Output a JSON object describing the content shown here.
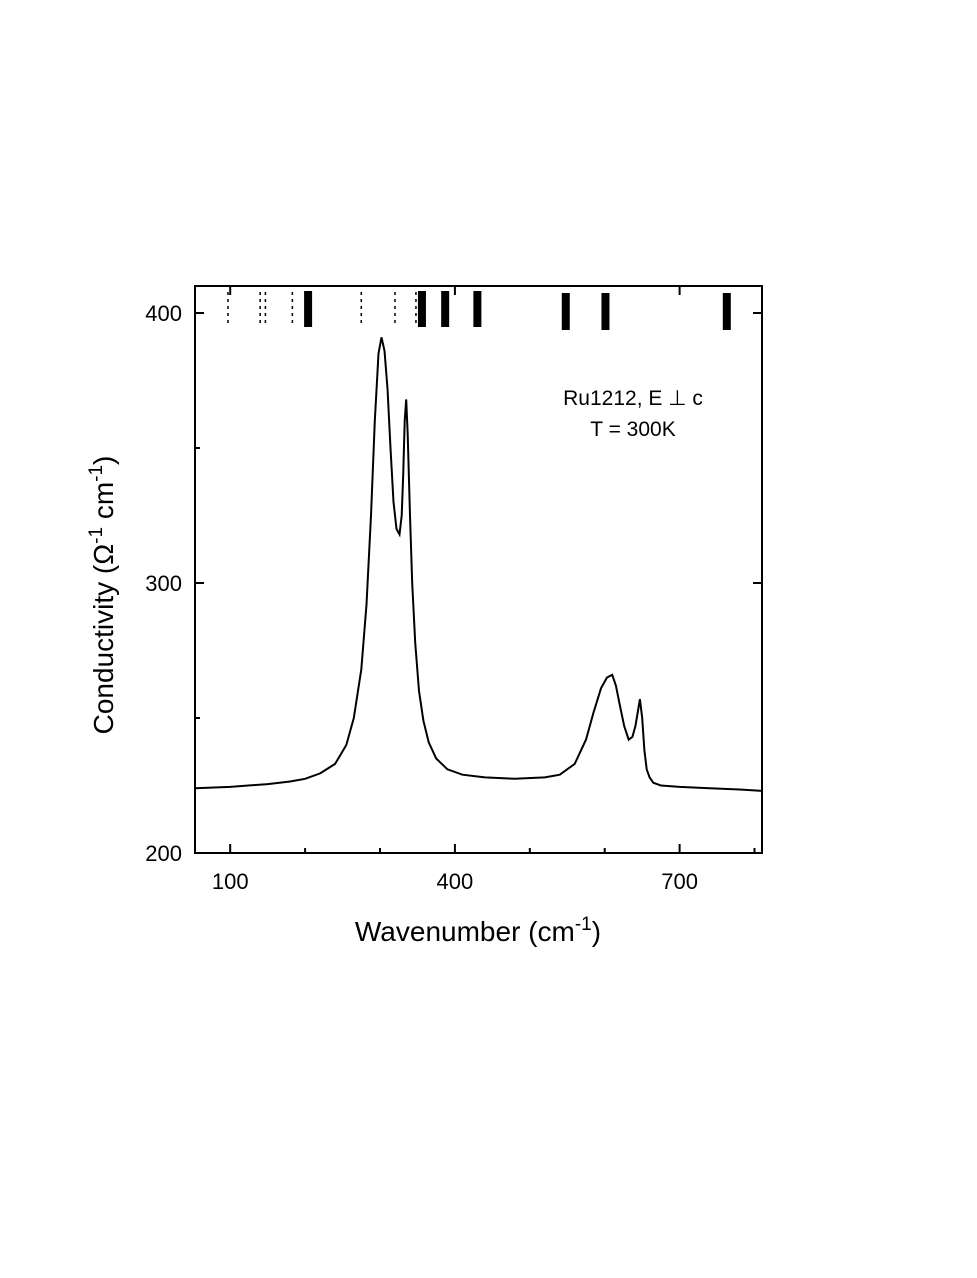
{
  "chart_data": {
    "type": "line",
    "title": "",
    "xlabel": {
      "base": "Wavenumber (cm",
      "sup": "-1",
      "tail": ")"
    },
    "ylabel": {
      "a": "Conductivity (Ω",
      "sup1": "-1",
      "b": " cm",
      "sup2": "-1",
      "c": ")"
    },
    "xlim": [
      53,
      810
    ],
    "ylim": [
      200,
      410
    ],
    "x_major_ticks": [
      100,
      400,
      700
    ],
    "x_tick_labels": [
      "100",
      "400",
      "700"
    ],
    "x_minor_ticks": [
      200,
      300,
      500,
      600,
      800
    ],
    "y_major_ticks": [
      200,
      300,
      400
    ],
    "y_tick_labels": [
      "200",
      "300",
      "400"
    ],
    "y_minor_ticks": [
      250,
      350
    ],
    "annotation": [
      "Ru1212, E ⊥ c",
      "T = 300K"
    ],
    "series": [
      {
        "x": [
          53,
          100,
          150,
          180,
          200,
          220,
          240,
          255,
          265,
          275,
          282,
          288,
          293,
          298,
          302,
          306,
          310,
          314,
          318,
          322,
          326,
          329,
          331,
          333,
          335,
          337,
          340,
          343,
          347,
          352,
          358,
          365,
          375,
          390,
          410,
          440,
          480,
          520,
          540,
          560,
          575,
          585,
          595,
          603,
          610,
          615,
          620,
          626,
          632,
          637,
          641,
          644,
          647,
          650,
          653,
          656,
          660,
          665,
          675,
          700,
          740,
          780,
          810
        ],
        "y": [
          224,
          224.5,
          225.5,
          226.5,
          227.5,
          229.5,
          233,
          240,
          250,
          268,
          292,
          325,
          360,
          385,
          391,
          386,
          372,
          350,
          330,
          320,
          318,
          325,
          340,
          360,
          368,
          355,
          325,
          300,
          278,
          260,
          249,
          241,
          235,
          231,
          229,
          228,
          227.5,
          228,
          229,
          233,
          242,
          252,
          261,
          265,
          266,
          262,
          255,
          247,
          242,
          243,
          247,
          252,
          257,
          250,
          238,
          231,
          228,
          226,
          225,
          224.5,
          224,
          223.5,
          223
        ]
      }
    ],
    "mode_markers": {
      "dotted": [
        97,
        140,
        147,
        183,
        275,
        320,
        348
      ],
      "solid": [
        204,
        356,
        387,
        430,
        548,
        601,
        763
      ],
      "solid_levels": [
        "high",
        "high",
        "high",
        "high",
        "low",
        "low",
        "low"
      ]
    }
  }
}
